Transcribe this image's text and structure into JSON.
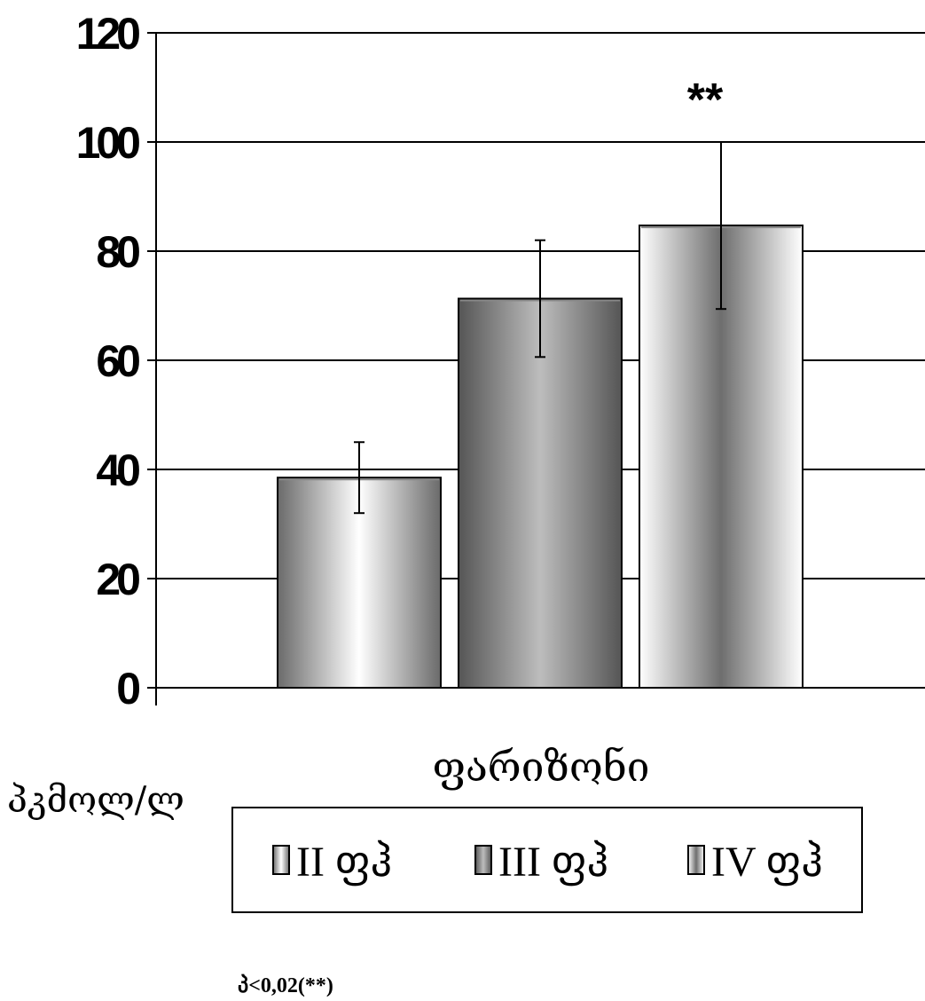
{
  "chart_data": {
    "type": "bar",
    "categories": [
      "ფარიზონი"
    ],
    "series": [
      {
        "name": "II ფჰ",
        "values": [
          38.5
        ],
        "error": [
          6.5
        ],
        "gradient": [
          "#6a6a6a",
          "#ffffff",
          "#6a6a6a"
        ]
      },
      {
        "name": "III ფჰ",
        "values": [
          71.3
        ],
        "error": [
          10.7
        ],
        "gradient": [
          "#555555",
          "#bdbdbd",
          "#555555"
        ]
      },
      {
        "name": "IV ფჰ",
        "values": [
          84.7
        ],
        "error": [
          15.3
        ],
        "gradient": [
          "#ffffff",
          "#6e6e6e",
          "#ffffff"
        ]
      }
    ],
    "ylim": [
      0,
      120
    ],
    "yticks": [
      0,
      20,
      40,
      60,
      80,
      100,
      120
    ],
    "ylabel": "პკმოლ/ლ",
    "xlabel": "",
    "grid": true,
    "legend_position": "bottom",
    "annotations": [
      {
        "series": 2,
        "text": "**"
      }
    ],
    "footnote": "პ<0,02(**)"
  }
}
